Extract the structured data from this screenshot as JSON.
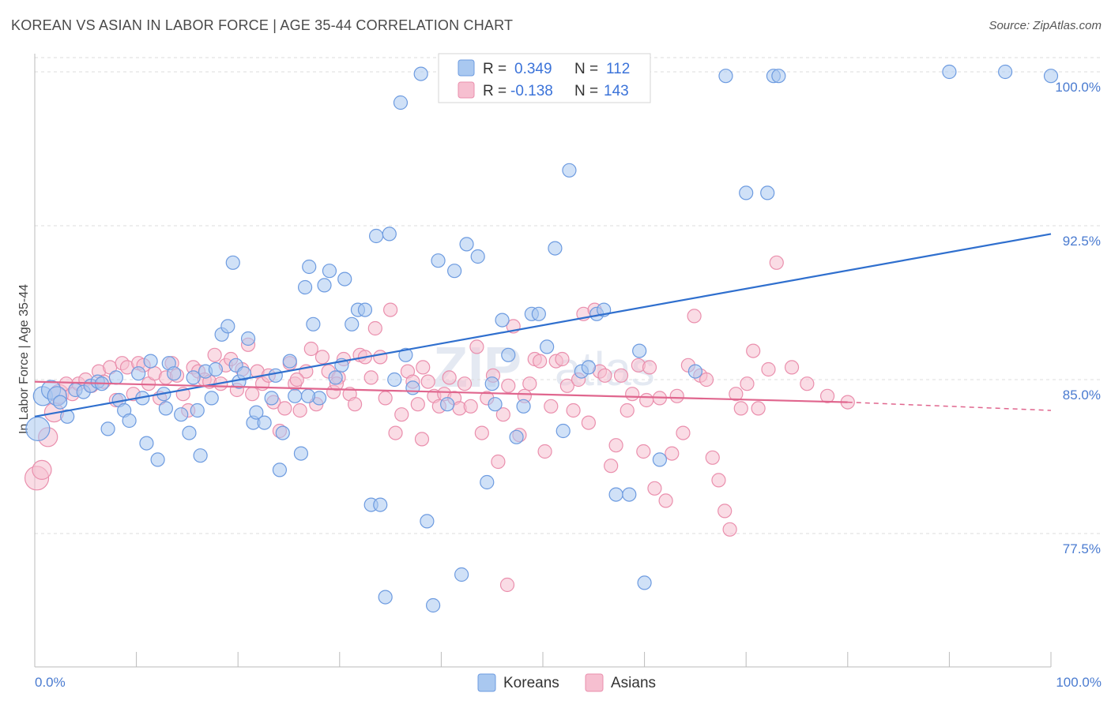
{
  "title": "KOREAN VS ASIAN IN LABOR FORCE | AGE 35-44 CORRELATION CHART",
  "source": "Source: ZipAtlas.com",
  "watermark": {
    "zip": "ZIP",
    "atlas": "atlas"
  },
  "colors": {
    "koreans_fill": "#a9c8f0",
    "koreans_stroke": "#6d9be0",
    "koreans_line": "#2f6fce",
    "asians_fill": "#f6bfd0",
    "asians_stroke": "#ea8fad",
    "asians_line": "#e0668e",
    "grid": "#dddddd",
    "tick_text": "#4a7bd0"
  },
  "legend": {
    "rows": [
      {
        "r_label": "R =",
        "r_value": "0.349",
        "n_label": "N =",
        "n_value": "112"
      },
      {
        "r_label": "R =",
        "r_value": "-0.138",
        "n_label": "N =",
        "n_value": "143"
      }
    ]
  },
  "bottom_legend": {
    "koreans": "Koreans",
    "asians": "Asians"
  },
  "chart_data": {
    "type": "scatter",
    "title": "KOREAN VS ASIAN IN LABOR FORCE | AGE 35-44 CORRELATION CHART",
    "xlabel": "",
    "ylabel": "In Labor Force | Age 35-44",
    "xlim": [
      0,
      100
    ],
    "ylim": [
      71,
      100.5
    ],
    "x_tick_labels": [
      "0.0%",
      "100.0%"
    ],
    "y_ticks": [
      77.5,
      85.0,
      92.5,
      100.0
    ],
    "y_tick_labels": [
      "77.5%",
      "85.0%",
      "92.5%",
      "100.0%"
    ],
    "grid": true,
    "legend_position": "top-center",
    "series": [
      {
        "name": "Koreans",
        "r": 0.349,
        "n": 112,
        "trend": [
          [
            0,
            83.2
          ],
          [
            100,
            92.1
          ]
        ],
        "points": [
          [
            0.8,
            84.2
          ],
          [
            1.6,
            84.5
          ],
          [
            2.2,
            84.2
          ],
          [
            2.5,
            83.9
          ],
          [
            3.2,
            83.2
          ],
          [
            4.0,
            84.5
          ],
          [
            4.8,
            84.4
          ],
          [
            5.5,
            84.7
          ],
          [
            6.2,
            84.9
          ],
          [
            7.2,
            82.6
          ],
          [
            8.0,
            85.1
          ],
          [
            8.3,
            84.0
          ],
          [
            8.8,
            83.5
          ],
          [
            9.3,
            83.0
          ],
          [
            10.2,
            85.3
          ],
          [
            10.6,
            84.1
          ],
          [
            11.0,
            81.9
          ],
          [
            11.4,
            85.9
          ],
          [
            12.1,
            81.1
          ],
          [
            12.7,
            84.3
          ],
          [
            12.9,
            83.6
          ],
          [
            13.2,
            85.8
          ],
          [
            13.7,
            85.3
          ],
          [
            14.4,
            83.3
          ],
          [
            15.2,
            82.4
          ],
          [
            15.6,
            85.1
          ],
          [
            16.0,
            83.5
          ],
          [
            16.3,
            81.3
          ],
          [
            16.8,
            85.4
          ],
          [
            17.4,
            84.1
          ],
          [
            17.8,
            85.5
          ],
          [
            18.4,
            87.2
          ],
          [
            19.0,
            87.6
          ],
          [
            19.5,
            90.7
          ],
          [
            19.8,
            85.7
          ],
          [
            20.1,
            84.9
          ],
          [
            20.6,
            85.3
          ],
          [
            21.0,
            87.0
          ],
          [
            21.5,
            82.9
          ],
          [
            21.8,
            83.4
          ],
          [
            22.6,
            82.9
          ],
          [
            23.3,
            84.1
          ],
          [
            23.7,
            85.2
          ],
          [
            24.1,
            80.6
          ],
          [
            24.4,
            82.4
          ],
          [
            25.1,
            85.9
          ],
          [
            25.6,
            84.2
          ],
          [
            26.2,
            81.4
          ],
          [
            26.6,
            89.5
          ],
          [
            27.0,
            90.5
          ],
          [
            27.4,
            87.7
          ],
          [
            28.0,
            84.1
          ],
          [
            28.5,
            89.6
          ],
          [
            29.0,
            90.3
          ],
          [
            29.6,
            85.1
          ],
          [
            30.2,
            85.7
          ],
          [
            30.5,
            89.9
          ],
          [
            31.2,
            87.7
          ],
          [
            31.8,
            88.4
          ],
          [
            32.5,
            88.4
          ],
          [
            33.1,
            78.9
          ],
          [
            33.6,
            92.0
          ],
          [
            34.0,
            78.9
          ],
          [
            34.5,
            74.4
          ],
          [
            34.9,
            92.1
          ],
          [
            35.4,
            85.0
          ],
          [
            36.0,
            98.5
          ],
          [
            36.5,
            86.2
          ],
          [
            37.2,
            84.6
          ],
          [
            38.0,
            99.9
          ],
          [
            38.6,
            78.1
          ],
          [
            39.2,
            74.0
          ],
          [
            39.7,
            90.8
          ],
          [
            40.6,
            83.8
          ],
          [
            41.3,
            90.3
          ],
          [
            42.0,
            75.5
          ],
          [
            42.5,
            91.6
          ],
          [
            43.6,
            91.0
          ],
          [
            44.5,
            80.0
          ],
          [
            45.3,
            83.8
          ],
          [
            46.0,
            87.9
          ],
          [
            46.6,
            86.2
          ],
          [
            47.4,
            82.2
          ],
          [
            48.1,
            83.7
          ],
          [
            48.9,
            88.2
          ],
          [
            49.6,
            88.2
          ],
          [
            50.4,
            86.6
          ],
          [
            51.2,
            91.4
          ],
          [
            52.0,
            82.5
          ],
          [
            52.6,
            95.2
          ],
          [
            53.8,
            85.4
          ],
          [
            54.5,
            85.6
          ],
          [
            55.3,
            88.2
          ],
          [
            56.0,
            88.4
          ],
          [
            57.2,
            79.4
          ],
          [
            58.5,
            79.4
          ],
          [
            59.5,
            86.4
          ],
          [
            60.0,
            75.1
          ],
          [
            61.5,
            81.1
          ],
          [
            65.0,
            85.4
          ],
          [
            68.0,
            99.8
          ],
          [
            70.0,
            94.1
          ],
          [
            72.1,
            94.1
          ],
          [
            72.7,
            99.8
          ],
          [
            73.2,
            99.8
          ],
          [
            90.0,
            100.0
          ],
          [
            95.5,
            100.0
          ],
          [
            100.0,
            99.8
          ],
          [
            0.3,
            82.6
          ],
          [
            6.6,
            84.8
          ],
          [
            26.9,
            84.2
          ],
          [
            45.0,
            84.8
          ]
        ]
      },
      {
        "name": "Asians",
        "r": -0.138,
        "n": 143,
        "trend": [
          [
            0,
            84.9
          ],
          [
            80,
            83.9
          ]
        ],
        "trend_dashed": [
          [
            80,
            83.9
          ],
          [
            100,
            83.5
          ]
        ],
        "points": [
          [
            0.2,
            80.2
          ],
          [
            0.7,
            80.6
          ],
          [
            1.3,
            82.2
          ],
          [
            1.9,
            83.4
          ],
          [
            2.4,
            84.3
          ],
          [
            3.1,
            84.8
          ],
          [
            3.7,
            84.3
          ],
          [
            4.3,
            84.8
          ],
          [
            5.0,
            85.0
          ],
          [
            5.6,
            84.7
          ],
          [
            6.3,
            85.4
          ],
          [
            6.8,
            84.9
          ],
          [
            7.4,
            85.6
          ],
          [
            8.0,
            84.0
          ],
          [
            8.6,
            85.8
          ],
          [
            9.1,
            85.6
          ],
          [
            9.7,
            84.3
          ],
          [
            10.2,
            85.8
          ],
          [
            10.7,
            85.7
          ],
          [
            11.2,
            84.8
          ],
          [
            11.8,
            85.3
          ],
          [
            12.3,
            84.1
          ],
          [
            12.9,
            85.1
          ],
          [
            13.5,
            85.8
          ],
          [
            14.0,
            85.2
          ],
          [
            14.6,
            84.3
          ],
          [
            15.1,
            83.5
          ],
          [
            15.6,
            85.6
          ],
          [
            16.1,
            85.4
          ],
          [
            16.7,
            85.0
          ],
          [
            17.2,
            84.9
          ],
          [
            17.7,
            86.2
          ],
          [
            18.3,
            84.8
          ],
          [
            18.8,
            85.7
          ],
          [
            19.3,
            86.0
          ],
          [
            19.9,
            84.5
          ],
          [
            20.4,
            85.5
          ],
          [
            21.0,
            86.7
          ],
          [
            21.4,
            84.3
          ],
          [
            21.9,
            85.4
          ],
          [
            22.4,
            84.8
          ],
          [
            23.0,
            85.2
          ],
          [
            23.5,
            83.9
          ],
          [
            24.1,
            82.5
          ],
          [
            24.6,
            83.6
          ],
          [
            25.1,
            85.8
          ],
          [
            25.6,
            84.8
          ],
          [
            26.1,
            83.5
          ],
          [
            26.7,
            85.4
          ],
          [
            27.2,
            86.5
          ],
          [
            27.7,
            83.8
          ],
          [
            28.3,
            86.1
          ],
          [
            28.9,
            85.4
          ],
          [
            29.4,
            84.4
          ],
          [
            29.9,
            85.1
          ],
          [
            30.4,
            86.0
          ],
          [
            31.0,
            84.3
          ],
          [
            31.5,
            83.8
          ],
          [
            32.0,
            86.2
          ],
          [
            32.5,
            86.1
          ],
          [
            33.1,
            85.1
          ],
          [
            33.5,
            87.5
          ],
          [
            34.0,
            86.1
          ],
          [
            34.5,
            84.1
          ],
          [
            35.0,
            88.4
          ],
          [
            35.5,
            82.4
          ],
          [
            36.1,
            83.3
          ],
          [
            36.7,
            85.4
          ],
          [
            37.2,
            84.9
          ],
          [
            37.7,
            83.8
          ],
          [
            38.2,
            85.6
          ],
          [
            38.7,
            84.9
          ],
          [
            39.3,
            84.2
          ],
          [
            39.8,
            83.7
          ],
          [
            40.3,
            84.3
          ],
          [
            40.8,
            85.1
          ],
          [
            41.3,
            84.1
          ],
          [
            41.8,
            83.6
          ],
          [
            42.3,
            84.8
          ],
          [
            42.9,
            83.7
          ],
          [
            43.5,
            86.6
          ],
          [
            44.0,
            82.4
          ],
          [
            44.5,
            84.1
          ],
          [
            45.1,
            85.2
          ],
          [
            45.6,
            81.0
          ],
          [
            46.1,
            83.3
          ],
          [
            46.6,
            84.7
          ],
          [
            47.1,
            87.6
          ],
          [
            47.7,
            82.3
          ],
          [
            48.2,
            84.2
          ],
          [
            48.7,
            84.8
          ],
          [
            49.2,
            86.0
          ],
          [
            49.7,
            85.9
          ],
          [
            50.2,
            81.5
          ],
          [
            50.8,
            83.7
          ],
          [
            51.3,
            85.9
          ],
          [
            51.9,
            86.0
          ],
          [
            52.4,
            84.7
          ],
          [
            53.0,
            83.5
          ],
          [
            53.5,
            85.0
          ],
          [
            54.0,
            88.2
          ],
          [
            54.5,
            82.9
          ],
          [
            55.1,
            88.4
          ],
          [
            55.6,
            85.4
          ],
          [
            56.1,
            85.2
          ],
          [
            56.7,
            80.8
          ],
          [
            57.2,
            81.8
          ],
          [
            57.7,
            85.2
          ],
          [
            58.3,
            83.5
          ],
          [
            58.8,
            84.3
          ],
          [
            59.4,
            85.7
          ],
          [
            59.9,
            81.5
          ],
          [
            60.5,
            85.6
          ],
          [
            61.0,
            79.7
          ],
          [
            61.5,
            84.1
          ],
          [
            62.1,
            79.1
          ],
          [
            62.7,
            81.4
          ],
          [
            63.2,
            84.2
          ],
          [
            63.8,
            82.4
          ],
          [
            64.3,
            85.7
          ],
          [
            64.9,
            88.1
          ],
          [
            65.5,
            85.2
          ],
          [
            66.1,
            85.0
          ],
          [
            66.7,
            81.2
          ],
          [
            67.3,
            80.1
          ],
          [
            67.9,
            78.6
          ],
          [
            68.4,
            77.7
          ],
          [
            69.0,
            84.3
          ],
          [
            69.5,
            83.6
          ],
          [
            70.1,
            84.8
          ],
          [
            70.7,
            86.4
          ],
          [
            71.2,
            83.6
          ],
          [
            72.2,
            85.5
          ],
          [
            73.0,
            90.7
          ],
          [
            74.5,
            85.6
          ],
          [
            76.0,
            84.8
          ],
          [
            78.0,
            84.2
          ],
          [
            80.0,
            83.9
          ],
          [
            46.5,
            75.0
          ],
          [
            29.7,
            84.8
          ],
          [
            38.1,
            82.1
          ],
          [
            25.8,
            85.0
          ],
          [
            60.2,
            84.0
          ]
        ]
      }
    ]
  }
}
